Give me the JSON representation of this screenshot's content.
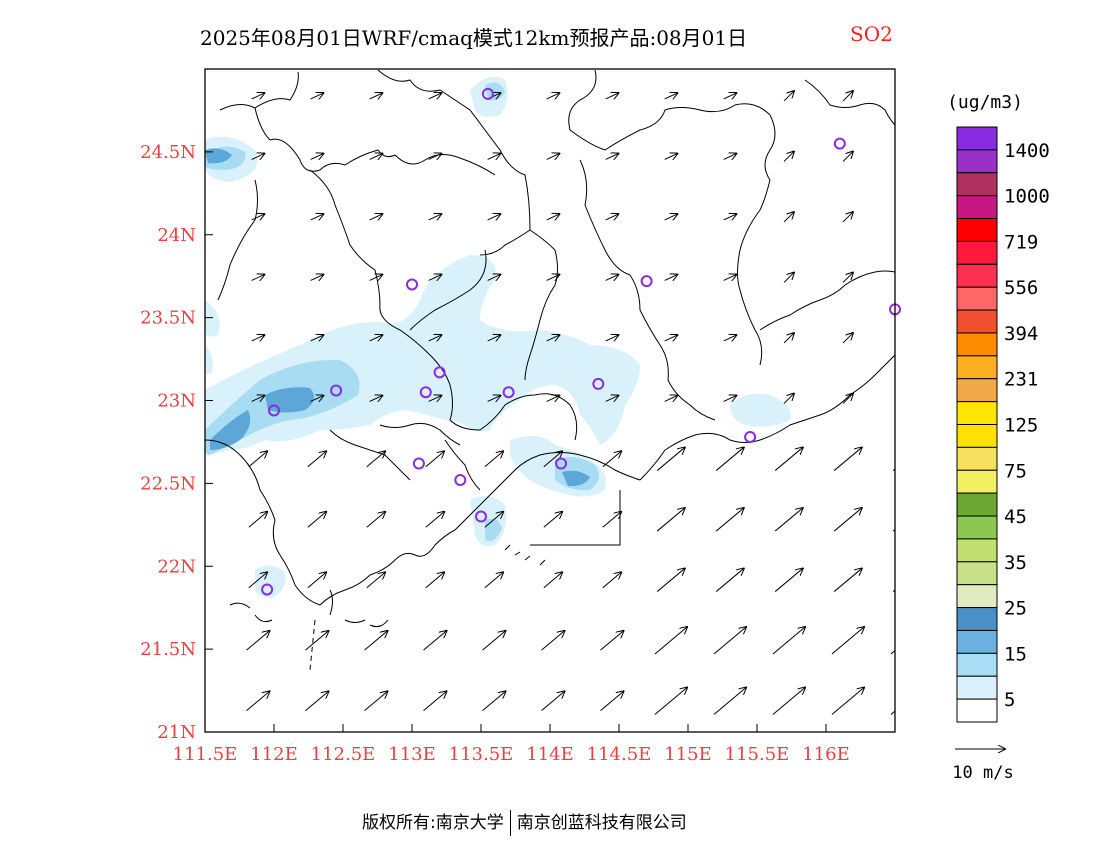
{
  "header": {
    "title": "2025年08月01日WRF/cmaq模式12km预报产品:08月01日",
    "species": "SO2"
  },
  "colors": {
    "axis_label": "#e84040",
    "coast": "#000000",
    "plume_light": "#d6f0fa",
    "plume_mid": "#a7dcf3",
    "plume_dark": "#5da6d8",
    "station_marker": "#8a2be2"
  },
  "legend": {
    "unit": "(ug/m3)",
    "labels": [
      "1400",
      "1000",
      "719",
      "556",
      "394",
      "231",
      "125",
      "75",
      "45",
      "35",
      "25",
      "15",
      "5"
    ],
    "colors_top_to_bottom": [
      "#8a2be2",
      "#9b30c8",
      "#b03060",
      "#c71585",
      "#ff0000",
      "#ff1a3c",
      "#ff3050",
      "#ff6666",
      "#f05030",
      "#ff8c00",
      "#ffb020",
      "#f0a848",
      "#ffe600",
      "#ffe000",
      "#f5e060",
      "#f0f060",
      "#6aa832",
      "#8cc850",
      "#c0e070",
      "#c8e088",
      "#e0ecc0",
      "#4a90c8",
      "#6ab0e0",
      "#a8ddf6",
      "#daf1fb",
      "#ffffff"
    ]
  },
  "vector_key": {
    "label": "10 m/s"
  },
  "footer": {
    "left": "版权所有:南京大学",
    "right": "南京创蓝科技有限公司"
  },
  "chart_data": {
    "type": "heatmap",
    "title": "2025年08月01日WRF/cmaq模式12km预报产品:08月01日 SO2",
    "x_axis": {
      "ticks": [
        "111.5E",
        "112E",
        "112.5E",
        "113E",
        "113.5E",
        "114E",
        "114.5E",
        "115E",
        "115.5E",
        "116E"
      ],
      "range": [
        111.5,
        116.5
      ]
    },
    "y_axis": {
      "ticks": [
        "21N",
        "21.5N",
        "22N",
        "22.5N",
        "23N",
        "23.5N",
        "24N",
        "24.5N"
      ],
      "range": [
        21.0,
        25.0
      ]
    },
    "plumes": [
      {
        "lon": 111.6,
        "lat": 24.45,
        "level": 15
      },
      {
        "lon": 112.0,
        "lat": 22.75,
        "level": 15
      },
      {
        "lon": 112.1,
        "lat": 23.0,
        "level": 15
      },
      {
        "lon": 112.5,
        "lat": 23.1,
        "level": 5
      },
      {
        "lon": 113.1,
        "lat": 23.4,
        "level": 5
      },
      {
        "lon": 113.5,
        "lat": 24.85,
        "level": 5
      },
      {
        "lon": 114.2,
        "lat": 22.55,
        "level": 15
      },
      {
        "lon": 113.6,
        "lat": 22.15,
        "level": 5
      },
      {
        "lon": 115.6,
        "lat": 22.9,
        "level": 5
      },
      {
        "lon": 111.95,
        "lat": 21.95,
        "level": 5
      }
    ],
    "stations": [
      {
        "lon": 113.55,
        "lat": 24.85
      },
      {
        "lon": 116.1,
        "lat": 24.55
      },
      {
        "lon": 113.0,
        "lat": 23.7
      },
      {
        "lon": 114.7,
        "lat": 23.72
      },
      {
        "lon": 116.5,
        "lat": 23.55
      },
      {
        "lon": 113.2,
        "lat": 23.17
      },
      {
        "lon": 112.45,
        "lat": 23.06
      },
      {
        "lon": 113.1,
        "lat": 23.05
      },
      {
        "lon": 113.7,
        "lat": 23.05
      },
      {
        "lon": 114.35,
        "lat": 23.1
      },
      {
        "lon": 112.0,
        "lat": 22.94
      },
      {
        "lon": 115.45,
        "lat": 22.78
      },
      {
        "lon": 113.05,
        "lat": 22.62
      },
      {
        "lon": 113.35,
        "lat": 22.52
      },
      {
        "lon": 114.08,
        "lat": 22.62
      },
      {
        "lon": 113.5,
        "lat": 22.3
      },
      {
        "lon": 111.95,
        "lat": 21.86
      }
    ],
    "wind": {
      "direction_deg_from": 225,
      "typical_speed_ms": 6,
      "key_speed_ms": 10
    }
  }
}
